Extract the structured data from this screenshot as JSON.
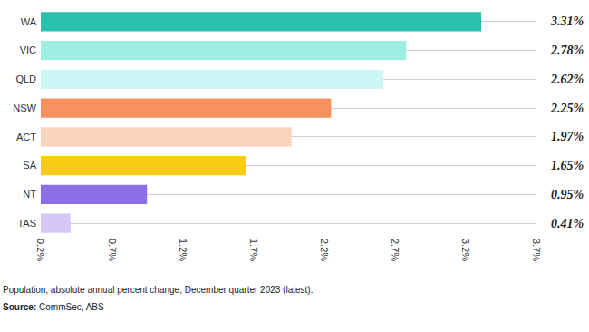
{
  "chart_data": {
    "type": "bar",
    "orientation": "horizontal",
    "categories": [
      "WA",
      "VIC",
      "QLD",
      "NSW",
      "ACT",
      "SA",
      "NT",
      "TAS"
    ],
    "values": [
      3.31,
      2.78,
      2.62,
      2.25,
      1.97,
      1.65,
      0.95,
      0.41
    ],
    "value_labels": [
      "3.31%",
      "2.78%",
      "2.62%",
      "2.25%",
      "1.97%",
      "1.65%",
      "0.95%",
      "0.41%"
    ],
    "colors": [
      "#2bbfad",
      "#9feee4",
      "#cdf6f6",
      "#f5925e",
      "#fbd3bd",
      "#f9cb14",
      "#8c6fe8",
      "#d4c8f8"
    ],
    "data_labels": true,
    "xlim": [
      0.2,
      3.7
    ],
    "xticks": [
      {
        "value": 0.2,
        "label": "0.2%"
      },
      {
        "value": 0.7,
        "label": "0.7%"
      },
      {
        "value": 1.2,
        "label": "1.2%"
      },
      {
        "value": 1.7,
        "label": "1.7%"
      },
      {
        "value": 2.2,
        "label": "2.2%"
      },
      {
        "value": 2.7,
        "label": "2.7%"
      },
      {
        "value": 3.2,
        "label": "3.2%"
      },
      {
        "value": 3.7,
        "label": "3.7%"
      }
    ],
    "grid": true,
    "annotations": [
      "Population, absolute annual percent change, December quarter 2023 (latest).",
      "Source: CommSec, ABS"
    ]
  }
}
